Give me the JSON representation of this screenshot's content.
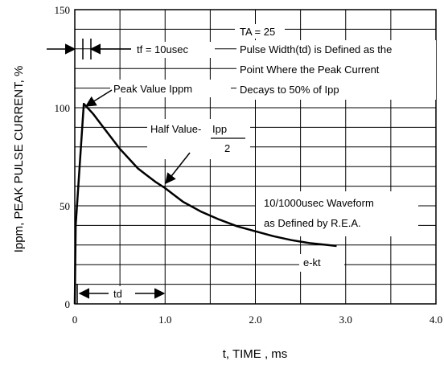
{
  "chart_data": {
    "type": "line",
    "xlabel": "t, TIME , ms",
    "ylabel": "Ippm, PEAK PULSE CURRENT, %",
    "xlim": [
      0,
      4.0
    ],
    "ylim": [
      0,
      150
    ],
    "x_ticks": [
      "0",
      "1.0",
      "2.0",
      "3.0",
      "4.0"
    ],
    "y_ticks": [
      "0",
      "50",
      "100",
      "150"
    ],
    "grid": true,
    "series": [
      {
        "x": [
          0,
          0.01,
          0.1,
          0.2,
          0.3,
          0.4,
          0.5,
          0.6,
          0.7,
          0.8,
          0.9,
          1.0,
          1.1,
          1.2,
          1.4,
          1.6,
          1.8,
          2.0,
          2.2,
          2.4,
          2.6,
          2.8,
          2.9
        ],
        "y": [
          0,
          40,
          102,
          97,
          91,
          85,
          79,
          74,
          69,
          65.5,
          62,
          59,
          55.5,
          52,
          47,
          43,
          39.5,
          37,
          34.5,
          32.5,
          31,
          30,
          29.5
        ]
      }
    ],
    "annotations": {
      "ta": "TA = 25",
      "pw1": "Pulse Width(td) is Defined as the",
      "pw2": "Point Where the Peak Current",
      "pw3": "Decays to 50% of Ipp",
      "tf": "tf = 10usec",
      "peak": "Peak Value Ippm",
      "half": "Half Value-",
      "half_ipp": "Ipp",
      "half_den": "2",
      "wave1": "10/1000usec Waveform",
      "wave2": "as Defined by R.E.A.",
      "ekt": "e-kt",
      "td": "td"
    }
  }
}
